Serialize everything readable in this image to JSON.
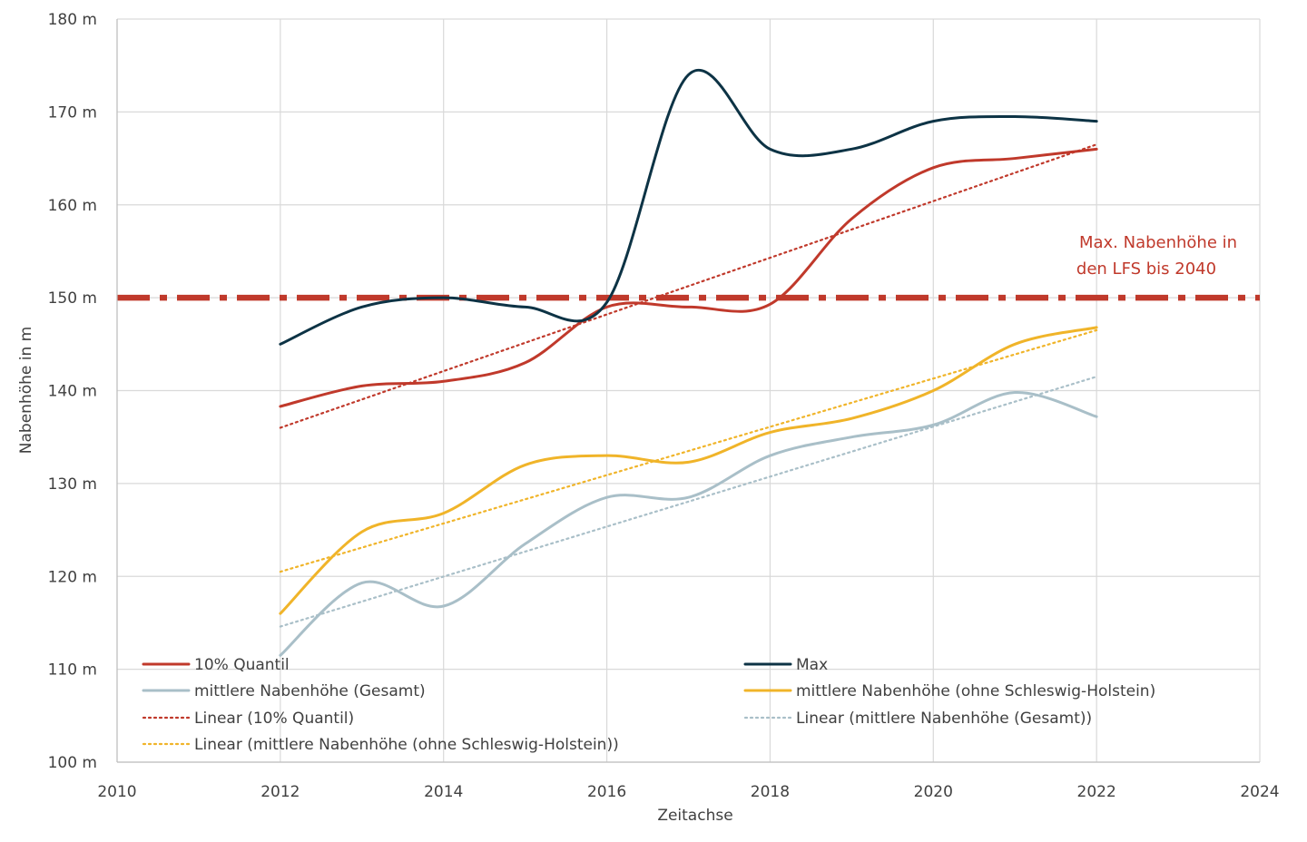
{
  "chart_data": {
    "type": "line",
    "xlabel": "Zeitachse",
    "ylabel": "Nabenhöhe in m",
    "xlim": [
      2010,
      2024
    ],
    "ylim": [
      100,
      180
    ],
    "x_ticks": [
      2010,
      2012,
      2014,
      2016,
      2018,
      2020,
      2022,
      2024
    ],
    "y_ticks": [
      100,
      110,
      120,
      130,
      140,
      150,
      160,
      170,
      180
    ],
    "x_tick_labels": [
      "2010",
      "2012",
      "2014",
      "2016",
      "2018",
      "2020",
      "2022",
      "2024"
    ],
    "y_tick_labels": [
      "100 m",
      "110 m",
      "120 m",
      "130 m",
      "140 m",
      "150 m",
      "160 m",
      "170 m",
      "180 m"
    ],
    "grid": true,
    "legend_position": "bottom-inside",
    "series": [
      {
        "name": "10% Quantil",
        "style": "solid",
        "color": "#C0392B",
        "x": [
          2012,
          2013,
          2014,
          2015,
          2016,
          2017,
          2018,
          2019,
          2020,
          2021,
          2022
        ],
        "y": [
          138.3,
          140.5,
          141.0,
          143.0,
          149.0,
          149.0,
          149.3,
          158.5,
          164.0,
          165.0,
          166.0
        ]
      },
      {
        "name": "Max",
        "style": "solid",
        "color": "#0D3345",
        "x": [
          2012,
          2013,
          2014,
          2015,
          2016,
          2017,
          2018,
          2019,
          2020,
          2021,
          2022
        ],
        "y": [
          145.0,
          149.0,
          150.0,
          149.0,
          149.5,
          174.0,
          166.0,
          166.0,
          169.0,
          169.5,
          169.0
        ]
      },
      {
        "name": "mittlere Nabenhöhe (Gesamt)",
        "style": "solid",
        "color": "#A9BFC8",
        "x": [
          2012,
          2013,
          2014,
          2015,
          2016,
          2017,
          2018,
          2019,
          2020,
          2021,
          2022
        ],
        "y": [
          111.5,
          119.3,
          116.8,
          123.5,
          128.5,
          128.5,
          133.0,
          135.0,
          136.3,
          139.8,
          137.2
        ]
      },
      {
        "name": "mittlere Nabenhöhe (ohne Schleswig-Holstein)",
        "style": "solid",
        "color": "#F0B429",
        "x": [
          2012,
          2013,
          2014,
          2015,
          2016,
          2017,
          2018,
          2019,
          2020,
          2021,
          2022
        ],
        "y": [
          116.0,
          124.8,
          126.8,
          132.0,
          133.0,
          132.3,
          135.5,
          137.0,
          140.0,
          145.0,
          146.8
        ]
      },
      {
        "name": "Linear (10% Quantil)",
        "style": "dotted",
        "color": "#C0392B",
        "x": [
          2012,
          2022
        ],
        "y": [
          136.0,
          166.5
        ]
      },
      {
        "name": "Linear (mittlere Nabenhöhe (Gesamt))",
        "style": "dotted",
        "color": "#A9BFC8",
        "x": [
          2012,
          2022
        ],
        "y": [
          114.6,
          141.5
        ]
      },
      {
        "name": "Linear (mittlere Nabenhöhe (ohne Schleswig-Holstein))",
        "style": "dotted",
        "color": "#F0B429",
        "x": [
          2012,
          2022
        ],
        "y": [
          120.5,
          146.5
        ]
      }
    ],
    "reference_line": {
      "y": 150,
      "color": "#C0392B",
      "style": "dash-dot",
      "annotation": [
        "Max. Nabenhöhe in",
        "den LFS bis 2040"
      ]
    }
  }
}
